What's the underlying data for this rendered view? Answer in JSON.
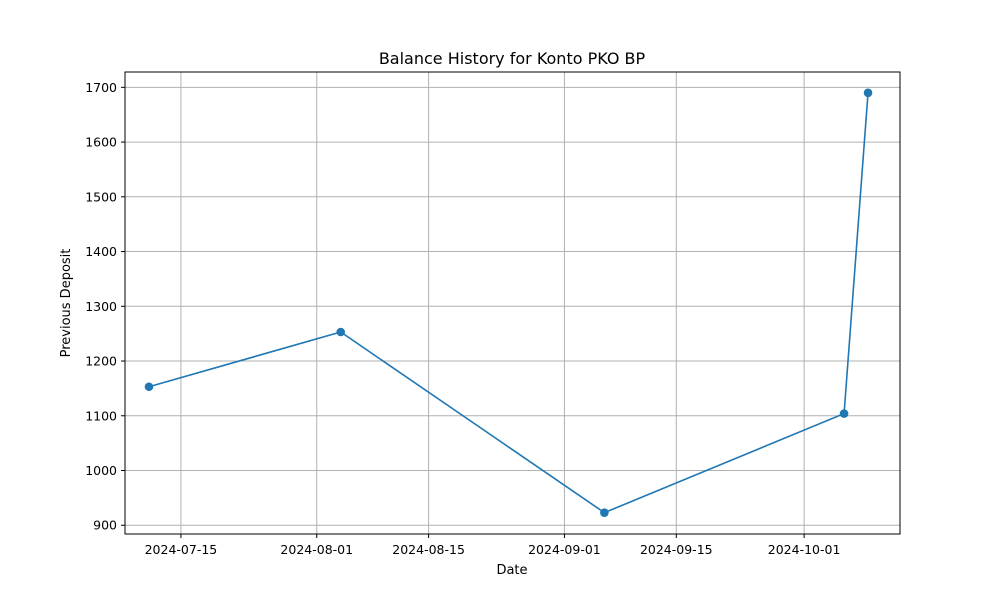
{
  "chart_data": {
    "type": "line",
    "title": "Balance History for Konto PKO BP",
    "xlabel": "Date",
    "ylabel": "Previous Deposit",
    "x_ticks": [
      "2024-07-15",
      "2024-08-01",
      "2024-08-15",
      "2024-09-01",
      "2024-09-15",
      "2024-10-01"
    ],
    "y_ticks": [
      900,
      1000,
      1100,
      1200,
      1300,
      1400,
      1500,
      1600,
      1700
    ],
    "xlim": [
      "2024-07-08",
      "2024-10-13"
    ],
    "ylim": [
      884,
      1728
    ],
    "grid": true,
    "series": [
      {
        "color": "#1f77b4",
        "marker": "circle",
        "points": [
          {
            "x": "2024-07-11",
            "y": 1153
          },
          {
            "x": "2024-08-04",
            "y": 1253
          },
          {
            "x": "2024-09-06",
            "y": 923
          },
          {
            "x": "2024-10-06",
            "y": 1104
          },
          {
            "x": "2024-10-09",
            "y": 1690
          }
        ]
      }
    ]
  }
}
